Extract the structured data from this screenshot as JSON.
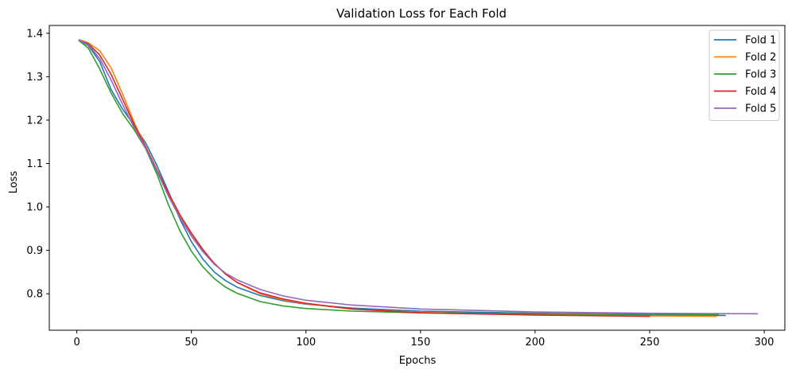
{
  "chart_data": {
    "type": "line",
    "title": "Validation Loss for Each Fold",
    "xlabel": "Epochs",
    "ylabel": "Loss",
    "xlim": [
      -12,
      309
    ],
    "ylim": [
      0.716,
      1.418
    ],
    "xticks": [
      0,
      50,
      100,
      150,
      200,
      250,
      300
    ],
    "yticks": [
      0.8,
      0.9,
      1.0,
      1.1,
      1.2,
      1.3,
      1.4
    ],
    "grid": false,
    "legend_position": "top-right",
    "series": [
      {
        "name": "Fold 1",
        "color": "#1f77b4",
        "x": [
          1,
          5,
          10,
          15,
          20,
          25,
          30,
          35,
          40,
          45,
          50,
          55,
          60,
          65,
          70,
          80,
          90,
          100,
          120,
          150,
          200,
          250,
          283
        ],
        "y": [
          1.384,
          1.372,
          1.335,
          1.27,
          1.225,
          1.188,
          1.148,
          1.095,
          1.035,
          0.972,
          0.92,
          0.88,
          0.85,
          0.83,
          0.815,
          0.796,
          0.784,
          0.776,
          0.767,
          0.76,
          0.755,
          0.751,
          0.75
        ]
      },
      {
        "name": "Fold 2",
        "color": "#ff7f0e",
        "x": [
          1,
          5,
          10,
          15,
          20,
          25,
          30,
          35,
          40,
          45,
          50,
          55,
          60,
          65,
          70,
          80,
          90,
          100,
          120,
          150,
          200,
          250,
          279
        ],
        "y": [
          1.385,
          1.378,
          1.36,
          1.32,
          1.26,
          1.195,
          1.14,
          1.085,
          1.03,
          0.98,
          0.938,
          0.9,
          0.87,
          0.845,
          0.826,
          0.8,
          0.786,
          0.777,
          0.765,
          0.757,
          0.752,
          0.749,
          0.748
        ]
      },
      {
        "name": "Fold 3",
        "color": "#2ca02c",
        "x": [
          1,
          5,
          10,
          15,
          20,
          25,
          30,
          35,
          40,
          45,
          50,
          55,
          60,
          65,
          70,
          80,
          90,
          100,
          120,
          150,
          200,
          250,
          280
        ],
        "y": [
          1.383,
          1.366,
          1.318,
          1.262,
          1.215,
          1.178,
          1.135,
          1.075,
          1.005,
          0.945,
          0.898,
          0.862,
          0.835,
          0.815,
          0.801,
          0.782,
          0.772,
          0.766,
          0.76,
          0.756,
          0.754,
          0.753,
          0.752
        ]
      },
      {
        "name": "Fold 4",
        "color": "#d62728",
        "x": [
          1,
          5,
          10,
          15,
          20,
          25,
          30,
          35,
          40,
          45,
          50,
          55,
          60,
          65,
          70,
          80,
          90,
          100,
          120,
          150,
          200,
          250
        ],
        "y": [
          1.384,
          1.376,
          1.35,
          1.305,
          1.248,
          1.19,
          1.138,
          1.085,
          1.032,
          0.982,
          0.94,
          0.902,
          0.87,
          0.845,
          0.826,
          0.802,
          0.788,
          0.778,
          0.765,
          0.756,
          0.751,
          0.748
        ]
      },
      {
        "name": "Fold 5",
        "color": "#9467bd",
        "x": [
          1,
          5,
          10,
          15,
          20,
          25,
          30,
          35,
          40,
          45,
          50,
          55,
          60,
          65,
          70,
          80,
          90,
          100,
          120,
          150,
          200,
          250,
          297
        ],
        "y": [
          1.384,
          1.374,
          1.342,
          1.292,
          1.236,
          1.183,
          1.135,
          1.082,
          1.025,
          0.975,
          0.933,
          0.897,
          0.868,
          0.847,
          0.832,
          0.81,
          0.795,
          0.785,
          0.774,
          0.765,
          0.758,
          0.755,
          0.754
        ]
      }
    ]
  }
}
